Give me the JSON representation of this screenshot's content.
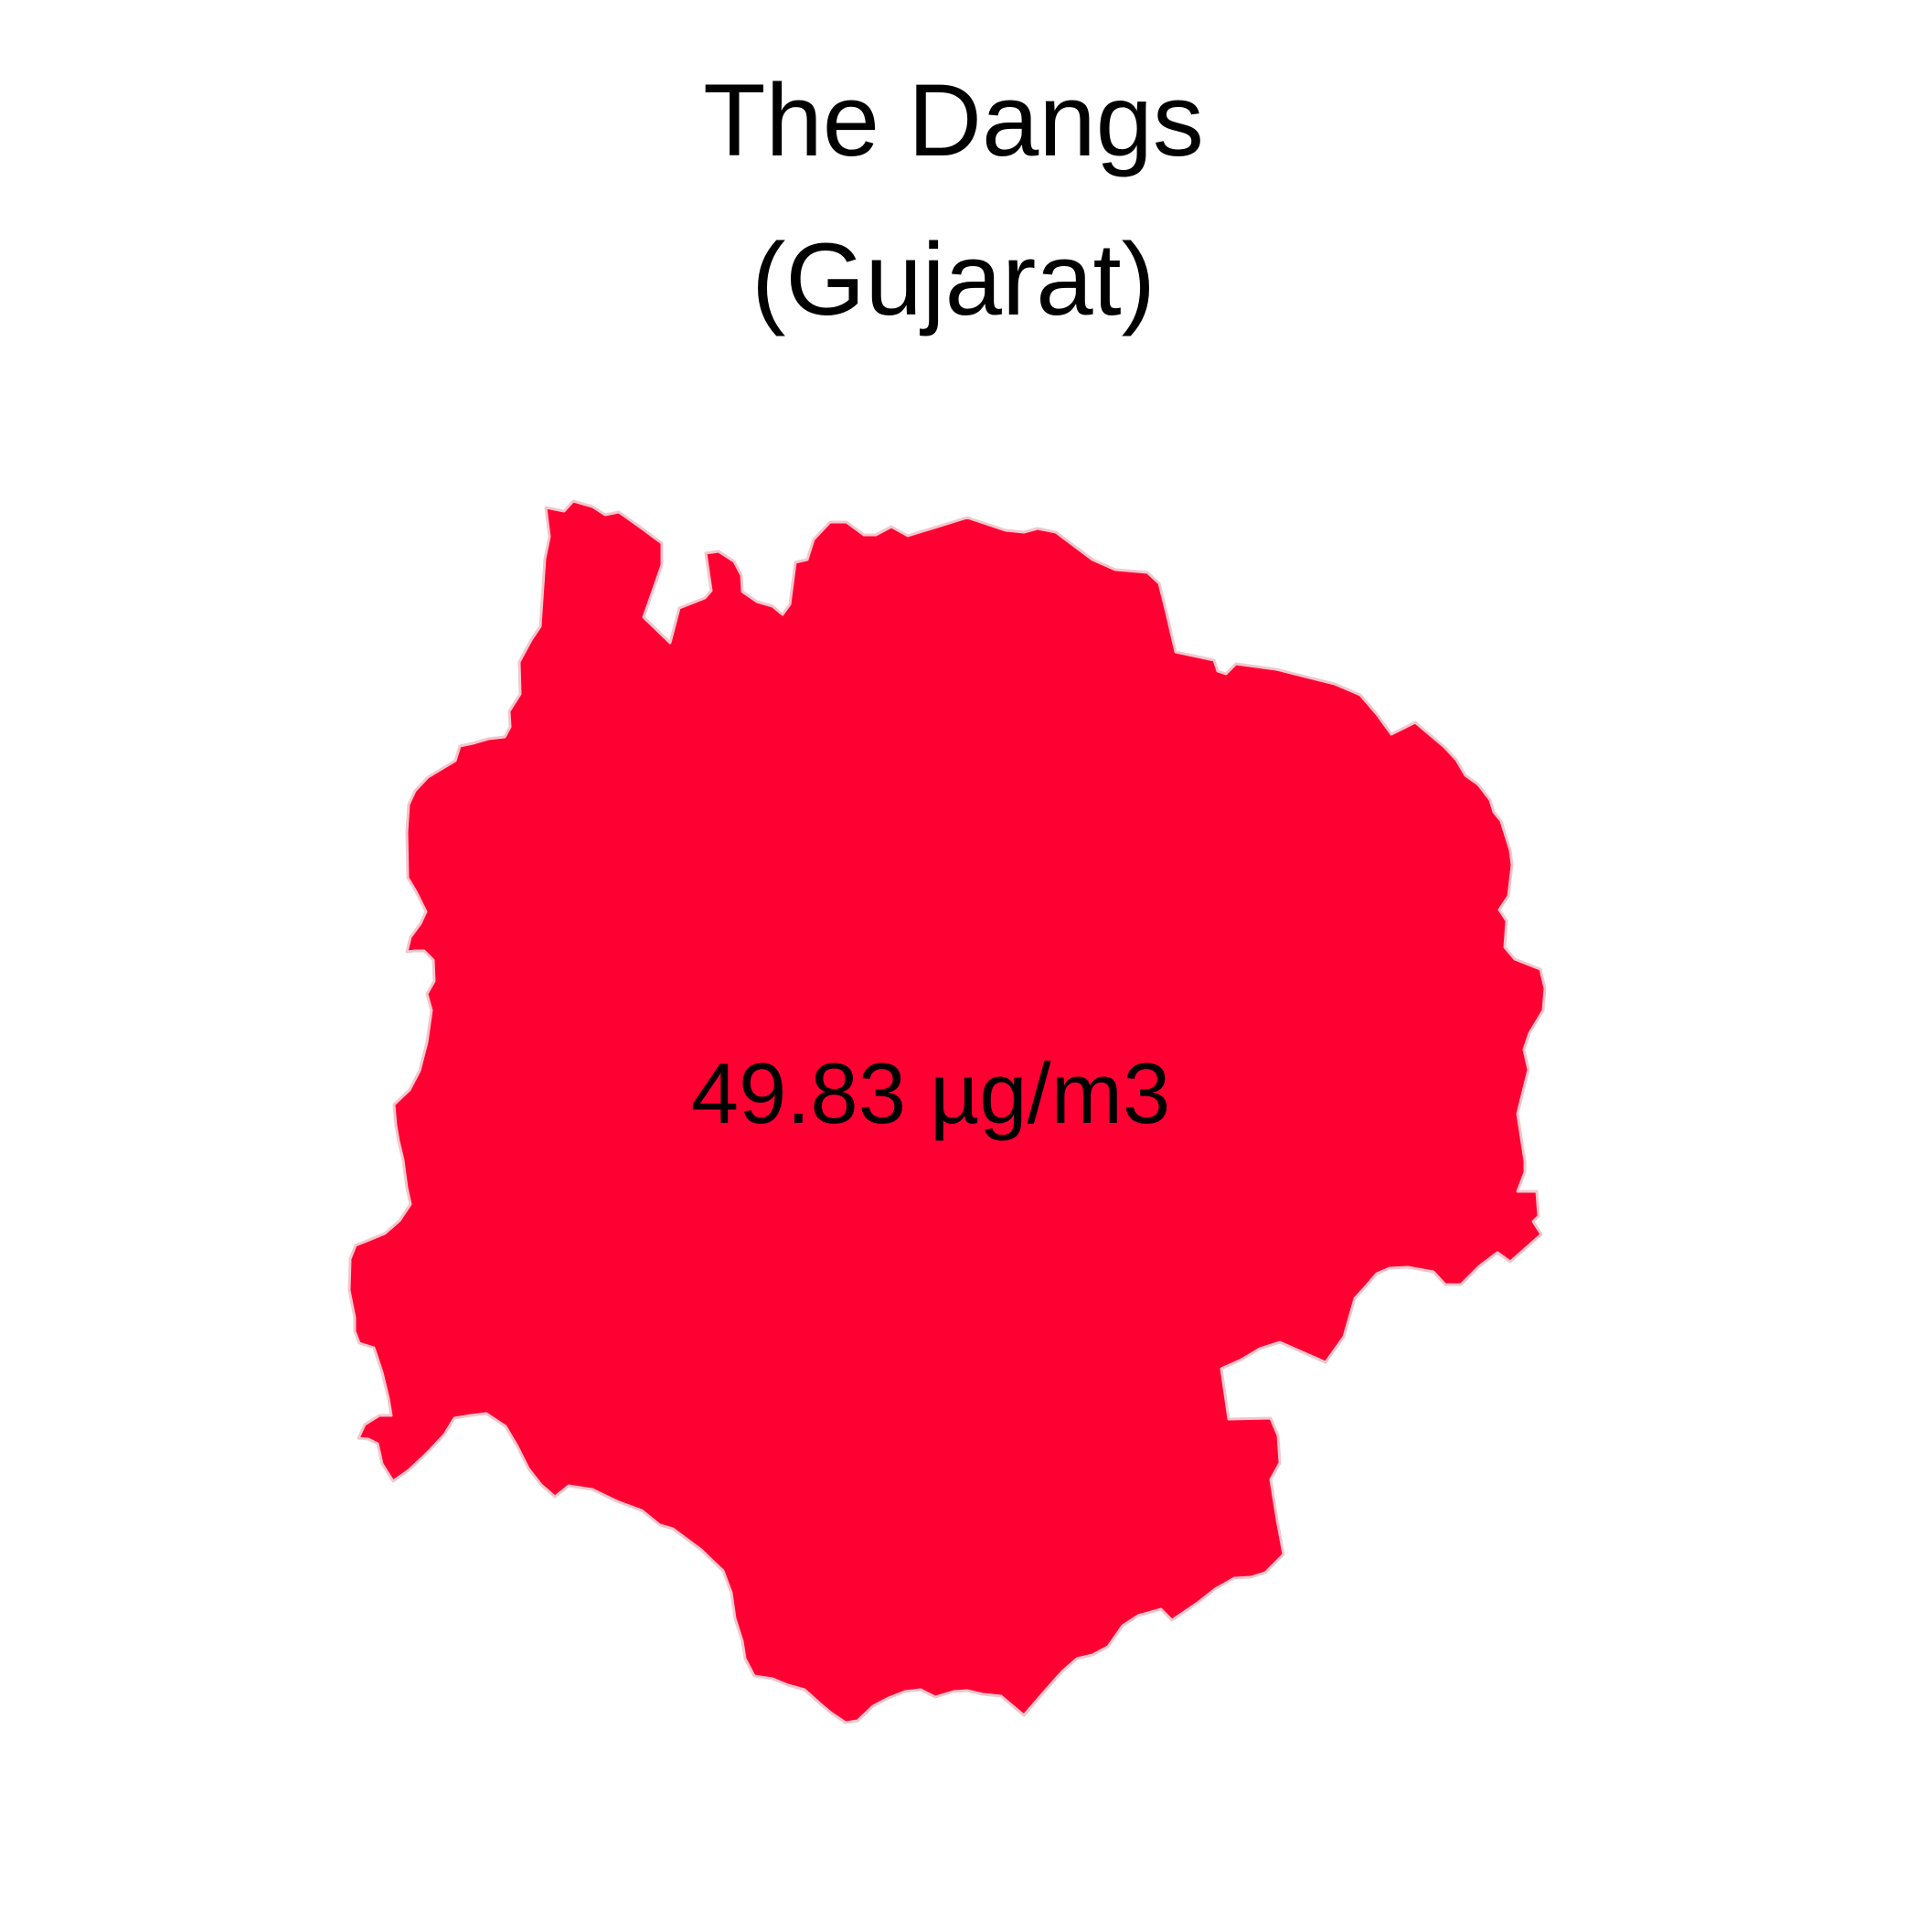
{
  "map": {
    "title_line1": "The Dangs",
    "title_line2": "(Gujarat)",
    "value_label": "49.83 µg/m3",
    "region_fill_color": "#ff0033",
    "region_stroke_color": "#f2c6cc",
    "background_color": "#ffffff"
  }
}
